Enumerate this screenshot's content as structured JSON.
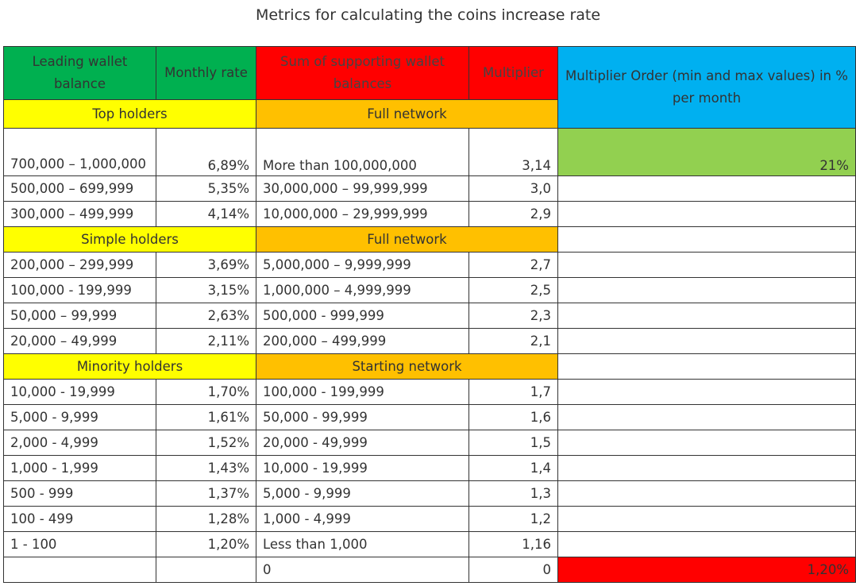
{
  "title": "Metrics for calculating the coins increase rate",
  "headers": {
    "leading": "Leading wallet balance",
    "monthly": "Monthly rate",
    "sum": "Sum of supporting wallet balances",
    "multiplier": "Multiplier",
    "order": "Multiplier Order (min and max values) in % per month"
  },
  "sections": {
    "top": {
      "left": "Top holders",
      "right": "Full network"
    },
    "simple": {
      "left": "Simple holders",
      "right": "Full network"
    },
    "minority": {
      "left": "Minority holders",
      "right": "Starting network"
    }
  },
  "rows": [
    {
      "balance": "700,000 – 1,000,000",
      "rate": "6,89%",
      "sum": "More than 100,000,000",
      "mult": "3,14"
    },
    {
      "balance": "500,000 – 699,999",
      "rate": "5,35%",
      "sum": "30,000,000 – 99,999,999",
      "mult": "3,0"
    },
    {
      "balance": "300,000 – 499,999",
      "rate": "4,14%",
      "sum": "10,000,000 – 29,999,999",
      "mult": "2,9"
    },
    {
      "balance": "200,000 – 299,999",
      "rate": "3,69%",
      "sum": "5,000,000 – 9,999,999",
      "mult": "2,7"
    },
    {
      "balance": "100,000 - 199,999",
      "rate": "3,15%",
      "sum": "1,000,000 – 4,999,999",
      "mult": "2,5"
    },
    {
      "balance": "50,000 – 99,999",
      "rate": "2,63%",
      "sum": "500,000 -  999,999",
      "mult": "2,3"
    },
    {
      "balance": "20,000 – 49,999",
      "rate": "2,11%",
      "sum": "200,000 – 499,999",
      "mult": "2,1"
    },
    {
      "balance": "10,000 - 19,999",
      "rate": "1,70%",
      "sum": "100,000 - 199,999",
      "mult": "1,7"
    },
    {
      "balance": "5,000 - 9,999",
      "rate": "1,61%",
      "sum": "50,000 - 99,999",
      "mult": "1,6"
    },
    {
      "balance": "2,000 - 4,999",
      "rate": "1,52%",
      "sum": "20,000 - 49,999",
      "mult": "1,5"
    },
    {
      "balance": "1,000 - 1,999",
      "rate": "1,43%",
      "sum": "10,000 - 19,999",
      "mult": "1,4"
    },
    {
      "balance": "500 - 999",
      "rate": "1,37%",
      "sum": "5,000 - 9,999",
      "mult": "1,3"
    },
    {
      "balance": "100 - 499",
      "rate": "1,28%",
      "sum": "1,000 - 4,999",
      "mult": "1,2"
    },
    {
      "balance": "1 - 100",
      "rate": "1,20%",
      "sum": "Less than 1,000",
      "mult": "1,16"
    },
    {
      "balance": "",
      "rate": "",
      "sum": "0",
      "mult": "0"
    }
  ],
  "order_max": "21%",
  "order_min": "1,20%",
  "colors": {
    "green": "#00b050",
    "red": "#ff0000",
    "blue": "#00b0f0",
    "yellow": "#ffff00",
    "orange": "#ffc000",
    "lime": "#92d050"
  }
}
